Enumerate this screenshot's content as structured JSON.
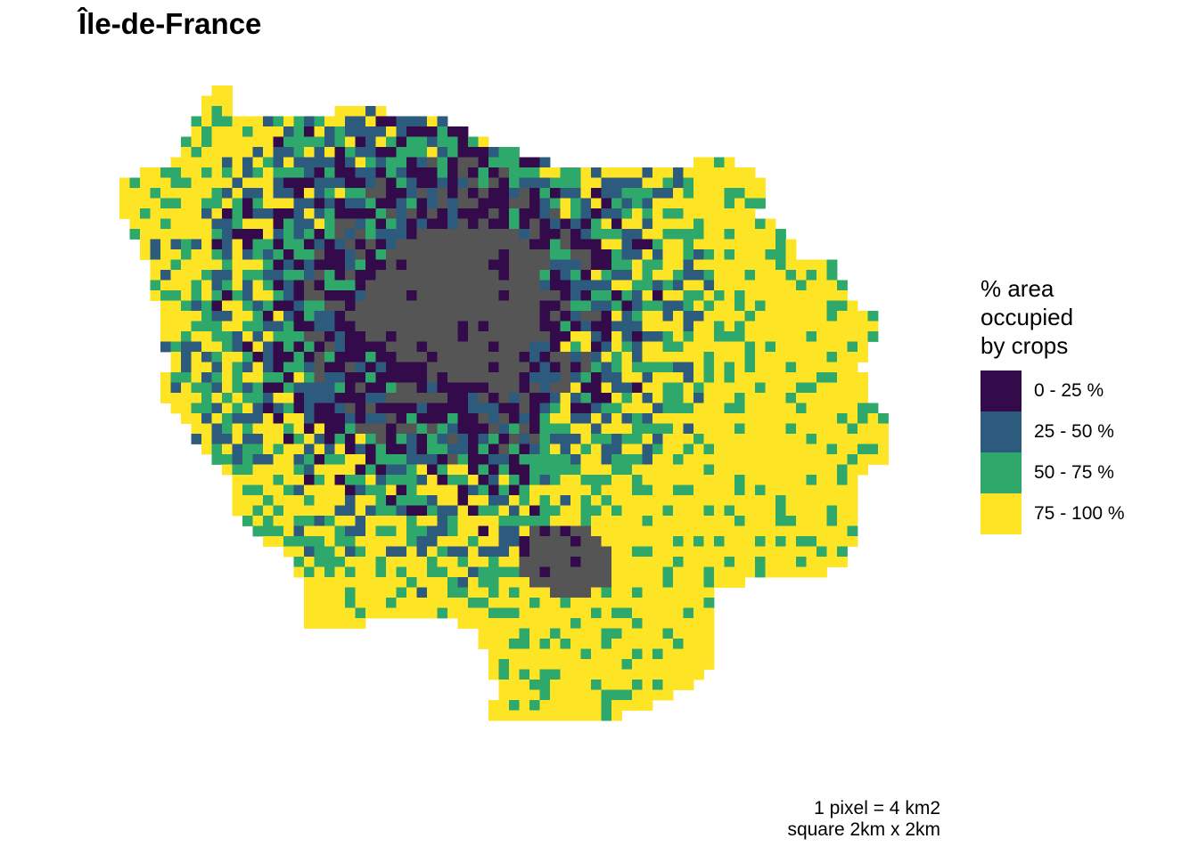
{
  "title": "Île-de-France",
  "legend": {
    "title_lines": [
      "% area",
      "occupied",
      "by crops"
    ],
    "classes": [
      {
        "label": "0 - 25 %",
        "color": "#330a4a"
      },
      {
        "label": "25 - 50 %",
        "color": "#2d5b7d"
      },
      {
        "label": "50 - 75 %",
        "color": "#2fa96b"
      },
      {
        "label": "75 - 100 %",
        "color": "#fde424"
      }
    ]
  },
  "no_data_color": "#555555",
  "caption_lines": [
    "1 pixel = 4 km2",
    "square 2km x 2km"
  ]
}
